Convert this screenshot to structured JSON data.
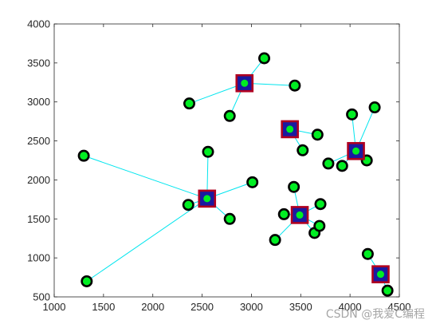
{
  "chart_data": {
    "type": "scatter",
    "title": "",
    "xlabel": "",
    "ylabel": "",
    "xlim": [
      1000,
      4500
    ],
    "ylim": [
      500,
      4000
    ],
    "xticks": [
      1000,
      1500,
      2000,
      2500,
      3000,
      3500,
      4000,
      4500
    ],
    "yticks": [
      500,
      1000,
      1500,
      2000,
      2500,
      3000,
      3500,
      4000
    ],
    "grid": false,
    "legend": "none",
    "series": [
      {
        "marker": "filled-square",
        "points": [
          {
            "x": 2550,
            "y": 1760
          },
          {
            "x": 2930,
            "y": 3240
          },
          {
            "x": 3390,
            "y": 2650
          },
          {
            "x": 3490,
            "y": 1550
          },
          {
            "x": 4060,
            "y": 2370
          },
          {
            "x": 4310,
            "y": 790
          }
        ]
      },
      {
        "marker": "filled-circle",
        "points": [
          {
            "x": 1300,
            "y": 2310
          },
          {
            "x": 1330,
            "y": 700
          },
          {
            "x": 2360,
            "y": 1680
          },
          {
            "x": 2560,
            "y": 2360
          },
          {
            "x": 2780,
            "y": 1500
          },
          {
            "x": 3010,
            "y": 1970
          },
          {
            "x": 2370,
            "y": 2980
          },
          {
            "x": 2780,
            "y": 2820
          },
          {
            "x": 3130,
            "y": 3560
          },
          {
            "x": 3440,
            "y": 3210
          },
          {
            "x": 3520,
            "y": 2380
          },
          {
            "x": 3670,
            "y": 2580
          },
          {
            "x": 3430,
            "y": 1910
          },
          {
            "x": 3330,
            "y": 1560
          },
          {
            "x": 3240,
            "y": 1230
          },
          {
            "x": 3640,
            "y": 1320
          },
          {
            "x": 3690,
            "y": 1410
          },
          {
            "x": 3700,
            "y": 1690
          },
          {
            "x": 3780,
            "y": 2210
          },
          {
            "x": 3920,
            "y": 2180
          },
          {
            "x": 4020,
            "y": 2840
          },
          {
            "x": 4250,
            "y": 2930
          },
          {
            "x": 4170,
            "y": 2250
          },
          {
            "x": 4180,
            "y": 1050
          },
          {
            "x": 4300,
            "y": 800
          },
          {
            "x": 4380,
            "y": 580
          }
        ]
      }
    ],
    "links": [
      {
        "from": [
          2550,
          1760
        ],
        "to": [
          1300,
          2310
        ]
      },
      {
        "from": [
          2550,
          1760
        ],
        "to": [
          1330,
          700
        ]
      },
      {
        "from": [
          2550,
          1760
        ],
        "to": [
          2360,
          1680
        ]
      },
      {
        "from": [
          2550,
          1760
        ],
        "to": [
          2560,
          2360
        ]
      },
      {
        "from": [
          2550,
          1760
        ],
        "to": [
          2780,
          1500
        ]
      },
      {
        "from": [
          2550,
          1760
        ],
        "to": [
          3010,
          1970
        ]
      },
      {
        "from": [
          2930,
          3240
        ],
        "to": [
          2370,
          2980
        ]
      },
      {
        "from": [
          2930,
          3240
        ],
        "to": [
          2780,
          2820
        ]
      },
      {
        "from": [
          2930,
          3240
        ],
        "to": [
          3130,
          3560
        ]
      },
      {
        "from": [
          2930,
          3240
        ],
        "to": [
          3440,
          3210
        ]
      },
      {
        "from": [
          3390,
          2650
        ],
        "to": [
          3520,
          2380
        ]
      },
      {
        "from": [
          3390,
          2650
        ],
        "to": [
          3670,
          2580
        ]
      },
      {
        "from": [
          3490,
          1550
        ],
        "to": [
          3430,
          1910
        ]
      },
      {
        "from": [
          3490,
          1550
        ],
        "to": [
          3330,
          1560
        ]
      },
      {
        "from": [
          3490,
          1550
        ],
        "to": [
          3240,
          1230
        ]
      },
      {
        "from": [
          3490,
          1550
        ],
        "to": [
          3640,
          1320
        ]
      },
      {
        "from": [
          3490,
          1550
        ],
        "to": [
          3690,
          1410
        ]
      },
      {
        "from": [
          3490,
          1550
        ],
        "to": [
          3700,
          1690
        ]
      },
      {
        "from": [
          4060,
          2370
        ],
        "to": [
          3780,
          2210
        ]
      },
      {
        "from": [
          4060,
          2370
        ],
        "to": [
          3920,
          2180
        ]
      },
      {
        "from": [
          4060,
          2370
        ],
        "to": [
          4020,
          2840
        ]
      },
      {
        "from": [
          4060,
          2370
        ],
        "to": [
          4250,
          2930
        ]
      },
      {
        "from": [
          4060,
          2370
        ],
        "to": [
          4170,
          2250
        ]
      },
      {
        "from": [
          4310,
          790
        ],
        "to": [
          4180,
          1050
        ]
      },
      {
        "from": [
          4310,
          790
        ],
        "to": [
          4300,
          800
        ]
      },
      {
        "from": [
          4310,
          790
        ],
        "to": [
          4380,
          580
        ]
      }
    ],
    "colors": {
      "link": "#00e5ee",
      "square_fill": "#1a1aa0",
      "square_edge": "#b00020",
      "circle_fill": "#00ee22",
      "circle_edge": "#000000",
      "center_dot": "#00ee22"
    }
  },
  "watermark": "CSDN @我爱C编程"
}
